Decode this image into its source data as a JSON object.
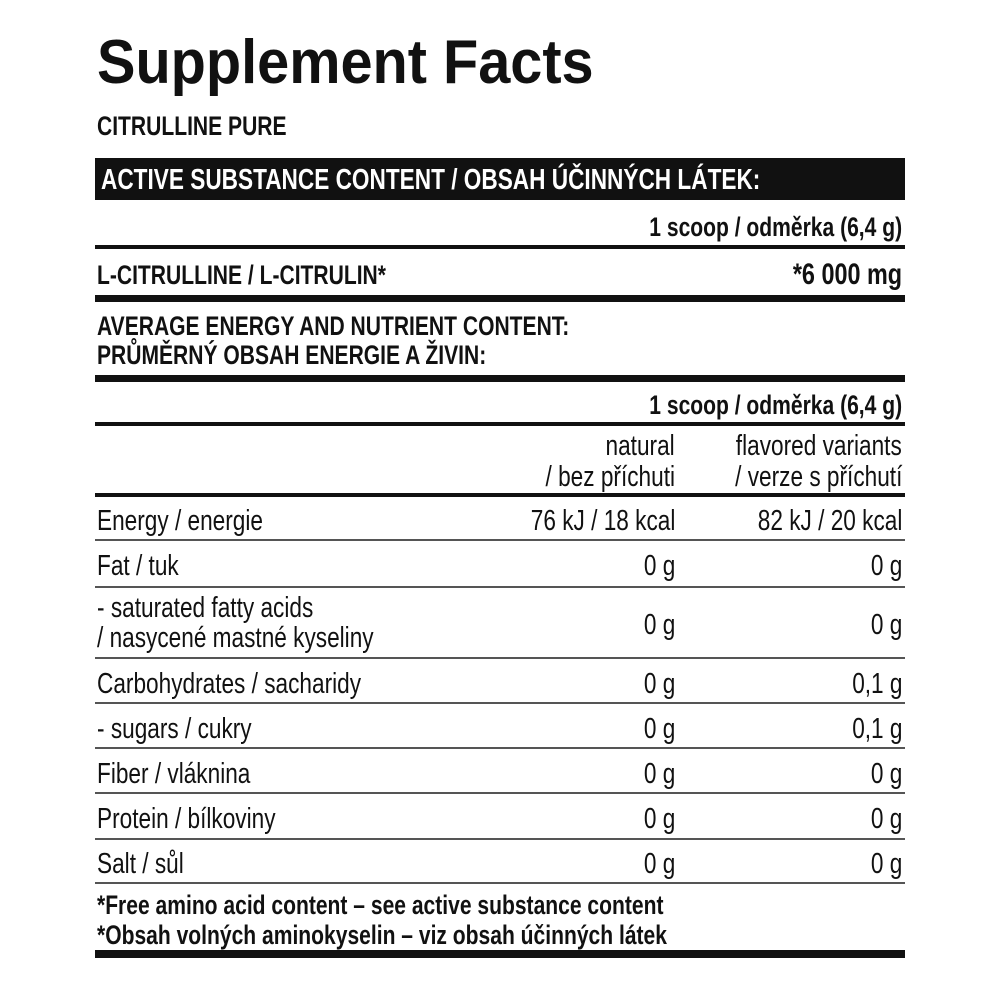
{
  "title": "Supplement Facts",
  "product": "CITRULLINE PURE",
  "active_section": {
    "header": "ACTIVE SUBSTANCE CONTENT / OBSAH ÚČINNÝCH LÁTEK:",
    "serving": "1 scoop / odměrka (6,4 g)",
    "ingredient": "L-CITRULLINE / L-CITRULIN*",
    "amount": "*6 000 mg"
  },
  "nutrient_section": {
    "header_line1": "AVERAGE ENERGY AND NUTRIENT CONTENT:",
    "header_line2": "PRŮMĚRNÝ OBSAH ENERGIE A ŽIVIN:",
    "serving": "1 scoop / odměrka (6,4 g)",
    "columns": [
      {
        "line1": "natural",
        "line2": "/ bez příchuti"
      },
      {
        "line1": "flavored variants",
        "line2": "/ verze s příchutí"
      }
    ],
    "rows": [
      {
        "label": "Energy / energie",
        "natural": "76 kJ / 18 kcal",
        "flavored": "82 kJ / 20 kcal"
      },
      {
        "label": "Fat / tuk",
        "natural": "0 g",
        "flavored": "0 g"
      },
      {
        "label": "- saturated fatty acids",
        "label2": "/ nasycené mastné kyseliny",
        "natural": "0 g",
        "flavored": "0 g"
      },
      {
        "label": "Carbohydrates / sacharidy",
        "natural": "0 g",
        "flavored": "0,1 g"
      },
      {
        "label": "- sugars / cukry",
        "natural": "0 g",
        "flavored": "0,1 g"
      },
      {
        "label": "Fiber / vláknina",
        "natural": "0 g",
        "flavored": "0 g"
      },
      {
        "label": "Protein / bílkoviny",
        "natural": "0 g",
        "flavored": "0 g"
      },
      {
        "label": "Salt / sůl",
        "natural": "0 g",
        "flavored": "0 g"
      }
    ]
  },
  "footnotes": [
    "*Free amino acid content – see active substance content",
    "*Obsah volných aminokyselin – viz obsah účinných látek"
  ]
}
